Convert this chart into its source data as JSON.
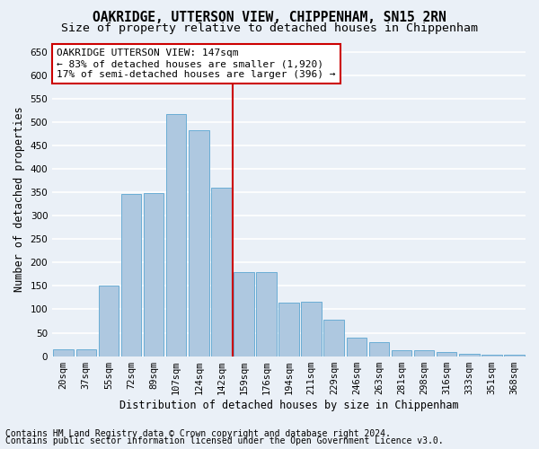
{
  "title": "OAKRIDGE, UTTERSON VIEW, CHIPPENHAM, SN15 2RN",
  "subtitle": "Size of property relative to detached houses in Chippenham",
  "xlabel": "Distribution of detached houses by size in Chippenham",
  "ylabel": "Number of detached properties",
  "categories": [
    "20sqm",
    "37sqm",
    "55sqm",
    "72sqm",
    "89sqm",
    "107sqm",
    "124sqm",
    "142sqm",
    "159sqm",
    "176sqm",
    "194sqm",
    "211sqm",
    "229sqm",
    "246sqm",
    "263sqm",
    "281sqm",
    "298sqm",
    "316sqm",
    "333sqm",
    "351sqm",
    "368sqm"
  ],
  "values": [
    15,
    15,
    150,
    347,
    348,
    517,
    483,
    360,
    180,
    180,
    115,
    117,
    77,
    40,
    30,
    13,
    13,
    8,
    5,
    3,
    3
  ],
  "bar_color": "#aec8e0",
  "bar_edgecolor": "#6aadd5",
  "vline_x_index": 7,
  "vline_color": "#cc0000",
  "annotation_text": "OAKRIDGE UTTERSON VIEW: 147sqm\n← 83% of detached houses are smaller (1,920)\n17% of semi-detached houses are larger (396) →",
  "annotation_box_edgecolor": "#cc0000",
  "annotation_box_facecolor": "#ffffff",
  "ylim": [
    0,
    670
  ],
  "yticks": [
    0,
    50,
    100,
    150,
    200,
    250,
    300,
    350,
    400,
    450,
    500,
    550,
    600,
    650
  ],
  "footnote1": "Contains HM Land Registry data © Crown copyright and database right 2024.",
  "footnote2": "Contains public sector information licensed under the Open Government Licence v3.0.",
  "bg_color": "#eaf0f7",
  "grid_color": "#ffffff",
  "title_fontsize": 10.5,
  "subtitle_fontsize": 9.5,
  "xlabel_fontsize": 8.5,
  "ylabel_fontsize": 8.5,
  "tick_fontsize": 7.5,
  "annotation_fontsize": 8,
  "footnote_fontsize": 7
}
